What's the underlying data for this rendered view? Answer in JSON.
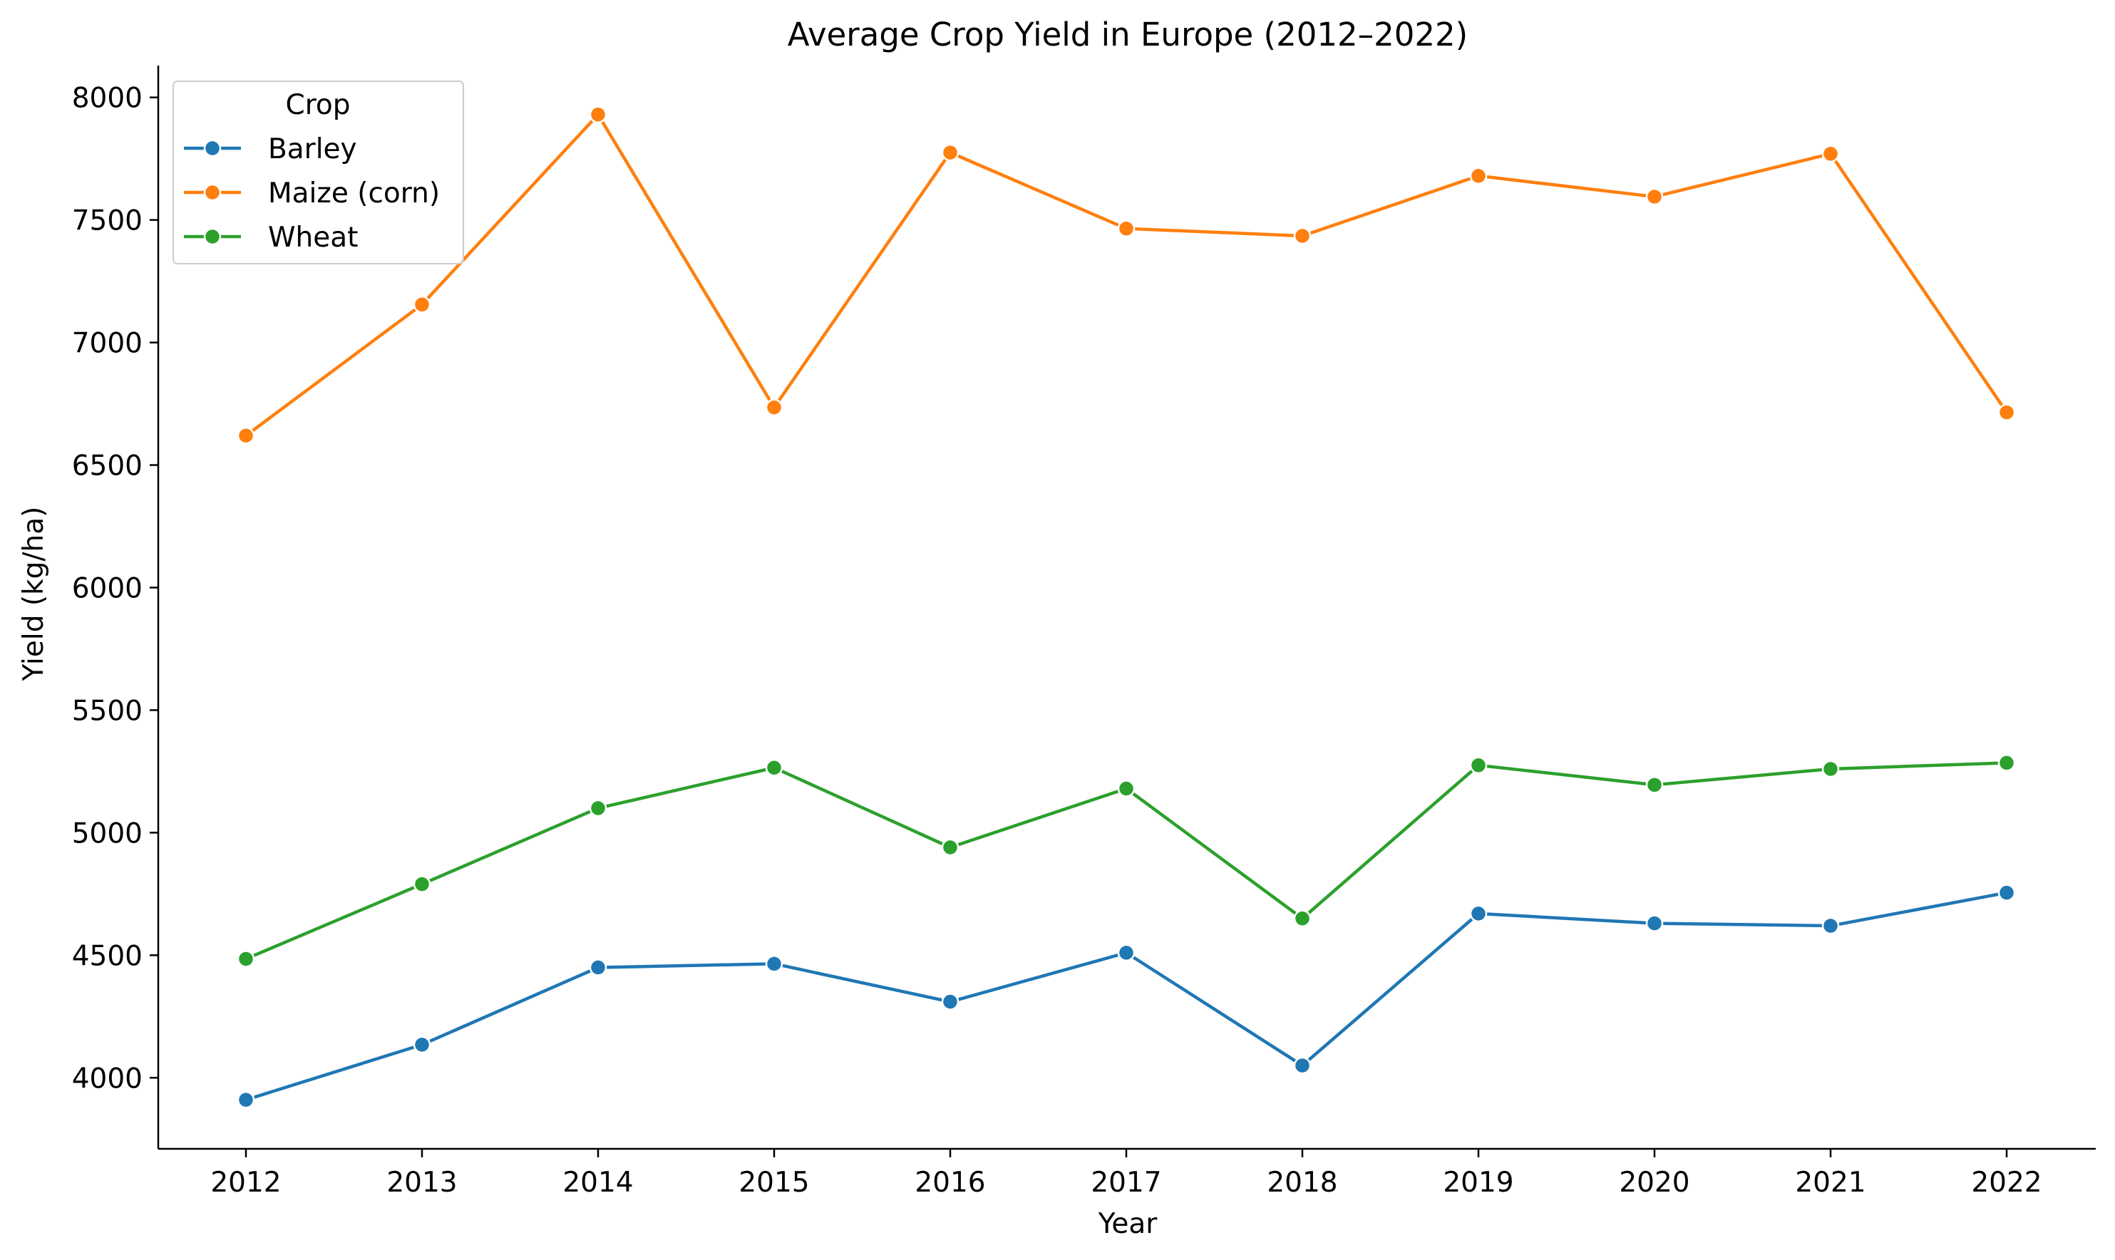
{
  "chart_data": {
    "type": "line",
    "title": "Average Crop Yield in Europe (2012–2022)",
    "xlabel": "Year",
    "ylabel": "Yield (kg/ha)",
    "x": [
      2012,
      2013,
      2014,
      2015,
      2016,
      2017,
      2018,
      2019,
      2020,
      2021,
      2022
    ],
    "x_tick_labels": [
      "2012",
      "2013",
      "2014",
      "2015",
      "2016",
      "2017",
      "2018",
      "2019",
      "2020",
      "2021",
      "2022"
    ],
    "y_ticks": [
      4000,
      4500,
      5000,
      5500,
      6000,
      6500,
      7000,
      7500,
      8000
    ],
    "y_tick_labels": [
      "4000",
      "4500",
      "5000",
      "5500",
      "6000",
      "6500",
      "7000",
      "7500",
      "8000"
    ],
    "ylim": [
      3710,
      8130
    ],
    "grid": false,
    "legend": {
      "title": "Crop",
      "placement": "top-left"
    },
    "series": [
      {
        "name": "Barley",
        "color": "#1f77b4",
        "marker": "circle",
        "values": [
          3910,
          4135,
          4450,
          4465,
          4310,
          4510,
          4050,
          4670,
          4630,
          4620,
          4755
        ]
      },
      {
        "name": "Maize (corn)",
        "color": "#ff7f0e",
        "marker": "circle",
        "values": [
          6620,
          7155,
          7930,
          6735,
          7775,
          7465,
          7435,
          7680,
          7595,
          7770,
          6715
        ]
      },
      {
        "name": "Wheat",
        "color": "#2ca02c",
        "marker": "circle",
        "values": [
          4485,
          4790,
          5100,
          5265,
          4940,
          5180,
          4650,
          5275,
          5195,
          5260,
          5285
        ]
      }
    ]
  }
}
